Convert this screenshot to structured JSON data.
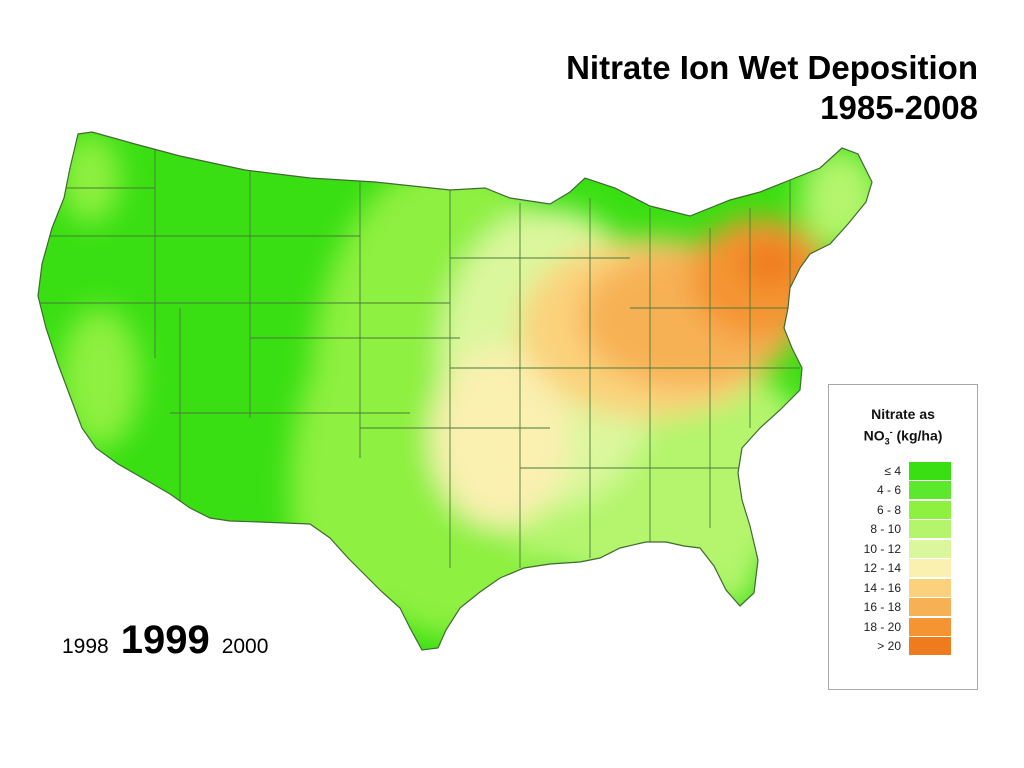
{
  "title": {
    "line1": "Nitrate Ion Wet Deposition",
    "line2": "1985-2008"
  },
  "year_nav": {
    "previous": "1998",
    "current": "1999",
    "next": "2000"
  },
  "legend": {
    "title_line1": "Nitrate as",
    "title_chem": "NO",
    "title_sub": "3",
    "title_sup": "-",
    "title_units": "(kg/ha)",
    "items": [
      {
        "label": "≤ 4",
        "color": "#39df12"
      },
      {
        "label": "4 - 6",
        "color": "#5ce82c"
      },
      {
        "label": "6 - 8",
        "color": "#8ef03f"
      },
      {
        "label": "8 - 10",
        "color": "#b4f56d"
      },
      {
        "label": "10 - 12",
        "color": "#dbf79d"
      },
      {
        "label": "12 - 14",
        "color": "#faf0b0"
      },
      {
        "label": "14 - 16",
        "color": "#fbd27b"
      },
      {
        "label": "16 - 18",
        "color": "#f7b155"
      },
      {
        "label": "18 - 20",
        "color": "#f49433"
      },
      {
        "label": "> 20",
        "color": "#ef7b1f"
      }
    ]
  },
  "map": {
    "region": "Contiguous United States",
    "colors": {
      "west": "#39df12",
      "plains": "#8ef03f",
      "midwest": "#dbf79d",
      "ohio_valley": "#f7b155",
      "northeast": "#f49433",
      "hotspot": "#ef7b1f",
      "southeast": "#b4f56d",
      "state_line": "#4b7a3a"
    }
  }
}
